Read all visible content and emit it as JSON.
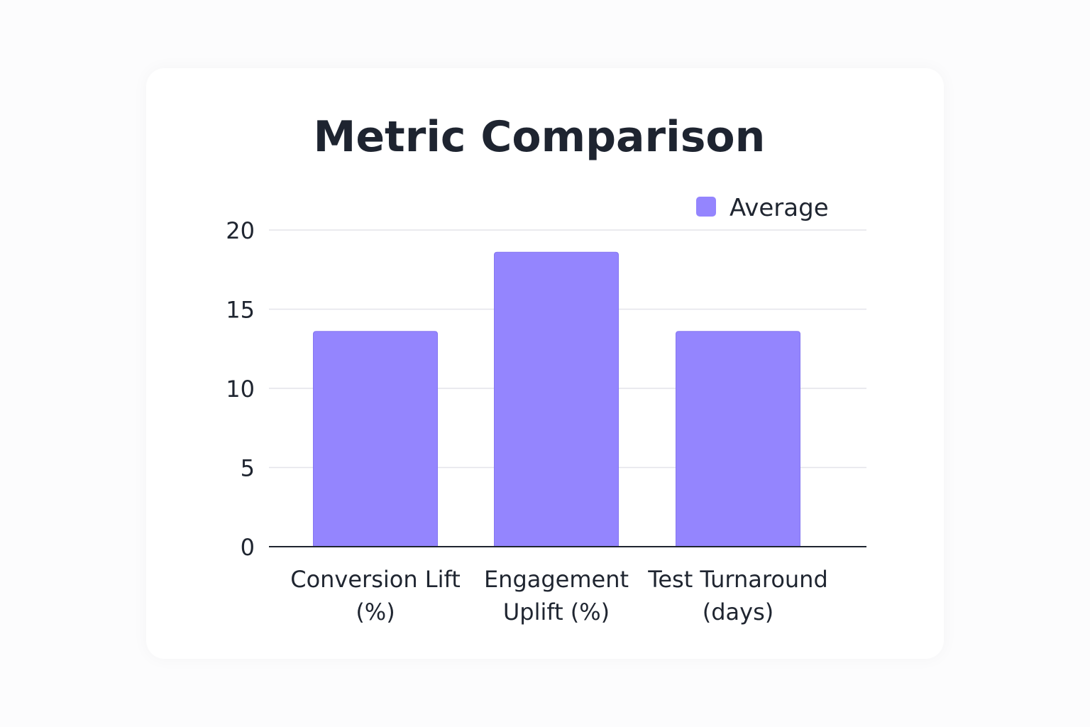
{
  "chart_data": {
    "type": "bar",
    "title": "Metric Comparison",
    "categories": [
      [
        "Conversion Lift",
        "(%)"
      ],
      [
        "Engagement",
        "Uplift (%)"
      ],
      [
        "Test Turnaround",
        "(days)"
      ]
    ],
    "series": [
      {
        "name": "Average",
        "values": [
          13.6,
          18.6,
          13.6
        ],
        "color": "#9485fe"
      }
    ],
    "xlabel": "",
    "ylabel": "",
    "ylim": [
      0,
      20
    ],
    "yticks": [
      0,
      5,
      10,
      15,
      20
    ],
    "grid": true,
    "legend_position": "top-right"
  },
  "colors": {
    "bar_fill": "#9485fe",
    "bar_stroke": "#8577f0",
    "grid": "#e4e4ea",
    "axis": "#1f2530"
  }
}
